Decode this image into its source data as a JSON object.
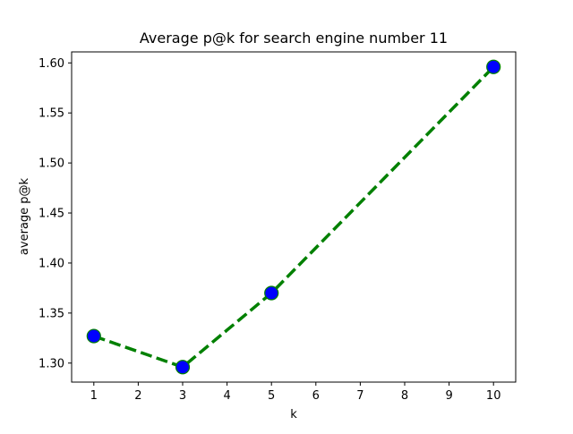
{
  "chart_data": {
    "type": "line",
    "title": "Average p@k for search engine number 11",
    "xlabel": "k",
    "ylabel": "average p@k",
    "x": [
      1,
      3,
      5,
      10
    ],
    "series": [
      {
        "values": [
          1.327,
          1.296,
          1.37,
          1.596
        ],
        "line_color": "#008000",
        "line_style": "dashed",
        "marker": "circle",
        "marker_face_color": "#0000ff",
        "marker_edge_color": "#008000"
      }
    ],
    "xlim": [
      0.5,
      10.5
    ],
    "ylim": [
      1.281,
      1.611
    ],
    "xticks": [
      "1",
      "2",
      "3",
      "4",
      "5",
      "6",
      "7",
      "8",
      "9",
      "10"
    ],
    "yticks": [
      "1.30",
      "1.35",
      "1.40",
      "1.45",
      "1.50",
      "1.55",
      "1.60"
    ],
    "grid": false
  }
}
